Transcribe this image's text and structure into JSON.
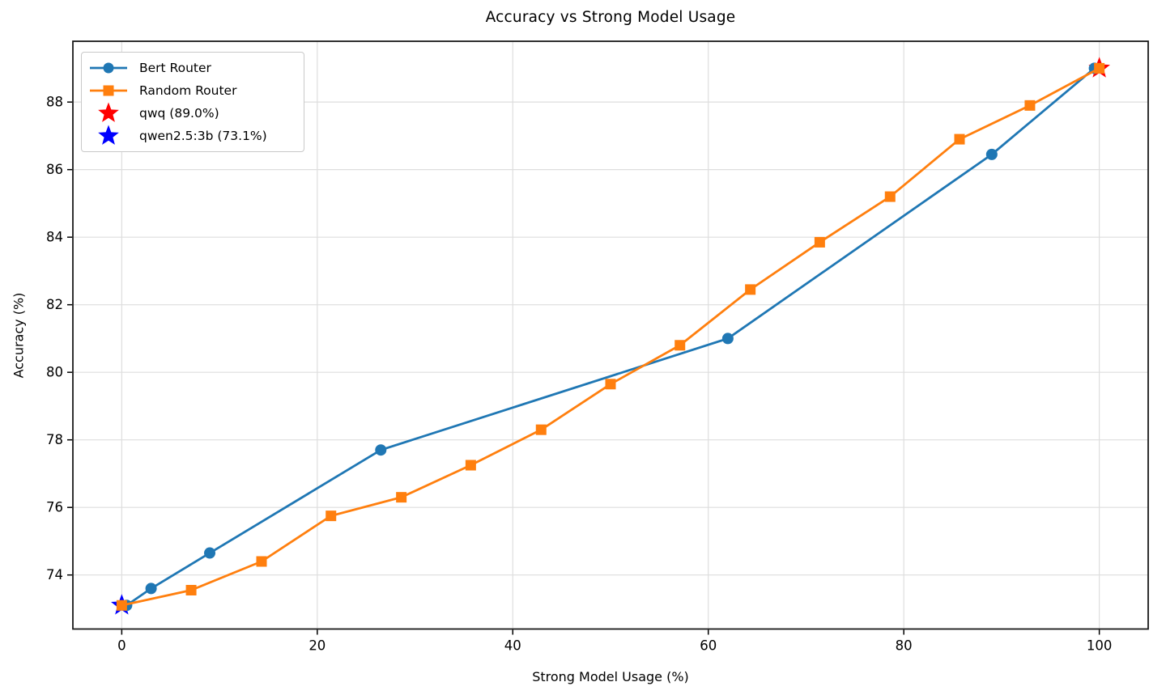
{
  "figure": {
    "background": "#ffffff"
  },
  "chart_data": {
    "type": "line",
    "title": "Accuracy vs Strong Model Usage",
    "xlabel": "Strong Model Usage (%)",
    "ylabel": "Accuracy (%)",
    "xlim": [
      -5,
      105
    ],
    "ylim": [
      72.4,
      89.8
    ],
    "xticks": [
      0,
      20,
      40,
      60,
      80,
      100
    ],
    "yticks": [
      74,
      76,
      78,
      80,
      82,
      84,
      86,
      88
    ],
    "grid": true,
    "grid_color": "#dedede",
    "spine_color": "#1a1a1a",
    "legend_position": "upper-left",
    "series": [
      {
        "name": "Bert Router",
        "color": "#1f77b4",
        "marker": "circle",
        "x": [
          0.5,
          3,
          9,
          26.5,
          62,
          89,
          99.5
        ],
        "y": [
          73.1,
          73.6,
          74.65,
          77.7,
          81.0,
          86.45,
          89.0
        ]
      },
      {
        "name": "Random Router",
        "color": "#ff7f0e",
        "marker": "square",
        "x": [
          0,
          7.1,
          14.3,
          21.4,
          28.6,
          35.7,
          42.9,
          50,
          57.1,
          64.3,
          71.4,
          78.6,
          85.7,
          92.9,
          100
        ],
        "y": [
          73.1,
          73.55,
          74.4,
          75.75,
          76.3,
          77.25,
          78.3,
          79.65,
          80.8,
          82.45,
          83.85,
          85.2,
          86.9,
          87.9,
          89.0
        ]
      }
    ],
    "points": [
      {
        "name": "qwq (89.0%)",
        "color": "#ff0000",
        "marker": "star",
        "x": 100,
        "y": 89.0
      },
      {
        "name": "qwen2.5:3b (73.1%)",
        "color": "#0000ff",
        "marker": "star",
        "x": 0,
        "y": 73.1
      }
    ]
  }
}
